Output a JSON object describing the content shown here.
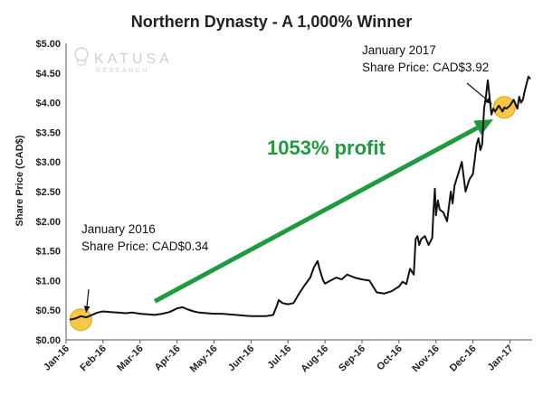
{
  "chart_data": {
    "type": "line",
    "title": "Northern Dynasty - A 1,000% Winner",
    "xlabel": "",
    "ylabel": "Share Price (CAD$)",
    "ylim": [
      0,
      5
    ],
    "yticks": [
      "$0.00",
      "$0.50",
      "$1.00",
      "$1.50",
      "$2.00",
      "$2.50",
      "$3.00",
      "$3.50",
      "$4.00",
      "$4.50",
      "$5.00"
    ],
    "categories": [
      "Jan-16",
      "Feb-16",
      "Mar-16",
      "Apr-16",
      "May-16",
      "Jun-16",
      "Jul-16",
      "Aug-16",
      "Sep-16",
      "Oct-16",
      "Nov-16",
      "Dec-16",
      "Jan-17"
    ],
    "grid": false,
    "series": [
      {
        "x": [
          0.1,
          0.25,
          0.4,
          0.55,
          0.7,
          0.85,
          1.0,
          1.2,
          1.4,
          1.6,
          1.8,
          2.0,
          2.2,
          2.4,
          2.6,
          2.8,
          3.0,
          3.15,
          3.3,
          3.45,
          3.6,
          3.8,
          4.0,
          4.2,
          4.4,
          4.6,
          4.8,
          5.0,
          5.2,
          5.4,
          5.6,
          5.7,
          5.75,
          5.85,
          6.0,
          6.15,
          6.3,
          6.45,
          6.6,
          6.7,
          6.8,
          6.85,
          6.9,
          6.95,
          7.0,
          7.15,
          7.3,
          7.45,
          7.6,
          7.8,
          8.0,
          8.2,
          8.4,
          8.6,
          8.8,
          9.0,
          9.1,
          9.2,
          9.3,
          9.4,
          9.45,
          9.5,
          9.55,
          9.6,
          9.7,
          9.8,
          9.9,
          9.93,
          9.97,
          10.0,
          10.05,
          10.1,
          10.2,
          10.3,
          10.4,
          10.45,
          10.5,
          10.6,
          10.7,
          10.8,
          10.9,
          11.0,
          11.1,
          11.15,
          11.2,
          11.25,
          11.3,
          11.35,
          11.4,
          11.5,
          11.55,
          11.6,
          11.7,
          11.8,
          11.85,
          11.9,
          12.0,
          12.1,
          12.2,
          12.25,
          12.3,
          12.35,
          12.4,
          12.5,
          12.55
        ],
        "values": [
          0.34,
          0.36,
          0.4,
          0.38,
          0.42,
          0.46,
          0.48,
          0.47,
          0.46,
          0.45,
          0.46,
          0.44,
          0.43,
          0.42,
          0.44,
          0.47,
          0.53,
          0.55,
          0.51,
          0.48,
          0.46,
          0.45,
          0.44,
          0.44,
          0.43,
          0.42,
          0.41,
          0.4,
          0.4,
          0.4,
          0.42,
          0.58,
          0.67,
          0.62,
          0.6,
          0.62,
          0.78,
          0.92,
          1.05,
          1.22,
          1.33,
          1.2,
          1.1,
          1.0,
          0.95,
          1.0,
          1.05,
          1.02,
          1.1,
          1.05,
          1.02,
          1.0,
          0.8,
          0.78,
          0.82,
          0.9,
          0.98,
          0.94,
          1.2,
          1.1,
          1.7,
          1.75,
          1.6,
          1.7,
          1.75,
          1.6,
          1.72,
          2.15,
          2.55,
          2.1,
          2.35,
          2.2,
          2.15,
          2.0,
          2.5,
          2.3,
          2.6,
          2.8,
          3.0,
          2.5,
          2.7,
          2.8,
          3.3,
          3.4,
          3.2,
          3.3,
          3.9,
          4.1,
          4.38,
          3.8,
          3.9,
          3.85,
          3.95,
          3.85,
          3.92,
          3.9,
          3.95,
          4.05,
          3.9,
          4.1,
          4.0,
          4.05,
          4.2,
          4.44,
          4.4
        ]
      }
    ],
    "annotations": [
      {
        "label": "January 2016",
        "value": "Share Price: CAD$0.34",
        "x": 0.4,
        "y": 0.34
      },
      {
        "label": "January 2017",
        "value": "Share Price: CAD$3.92",
        "x": 11.85,
        "y": 3.92
      },
      {
        "label": "1053% profit"
      }
    ],
    "colors": {
      "line": "#111111",
      "arrow": "#1f9a3f",
      "highlight": "#f6c843",
      "highlight_edge": "#d8a31a"
    }
  },
  "watermark": {
    "brand": "KATUSA",
    "sub": "RESEARCH"
  }
}
